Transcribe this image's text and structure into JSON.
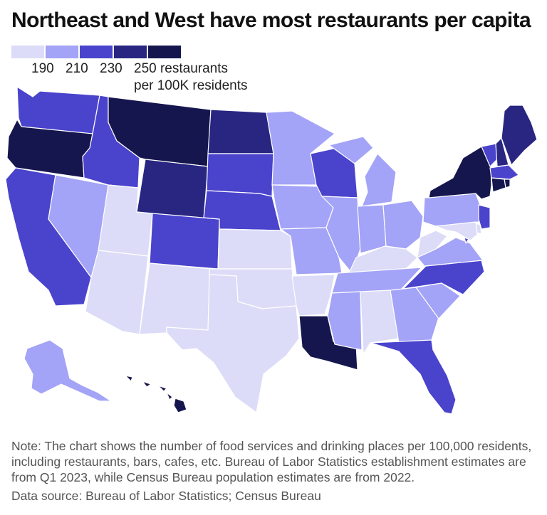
{
  "title": "Northeast and West have most restaurants per capita",
  "legend": {
    "colors": [
      "#dcdcf8",
      "#a3a3f7",
      "#4a43cc",
      "#282681",
      "#16164f"
    ],
    "ticks": [
      "190",
      "210",
      "230",
      "250 restaurants"
    ],
    "unit_line": "per 100K residents"
  },
  "note": "Note: The chart shows the number of food services and drinking places per 100,000 residents, including restaurants, bars, cafes, etc. Bureau of Labor Statistics establishment estimates are from Q1 2023, while Census Bureau population estimates are from 2022.",
  "source": "Data source: Bureau of Labor Statistics; Census Bureau",
  "chart_data": {
    "type": "choropleth",
    "title": "Northeast and West have most restaurants per capita",
    "value_label": "restaurants per 100K residents",
    "bins": [
      190,
      210,
      230,
      250
    ],
    "bin_colors": [
      "#dcdcf8",
      "#a3a3f7",
      "#4a43cc",
      "#282681",
      "#16164f"
    ],
    "states": {
      "WA": 3,
      "OR": 5,
      "CA": 3,
      "NV": 2,
      "ID": 3,
      "MT": 5,
      "WY": 4,
      "UT": 1,
      "AZ": 1,
      "CO": 3,
      "NM": 1,
      "ND": 4,
      "SD": 3,
      "NE": 3,
      "KS": 1,
      "OK": 1,
      "TX": 1,
      "MN": 2,
      "IA": 2,
      "MO": 2,
      "AR": 1,
      "LA": 5,
      "WI": 3,
      "IL": 2,
      "MI": 2,
      "IN": 2,
      "OH": 2,
      "KY": 1,
      "TN": 2,
      "MS": 2,
      "AL": 1,
      "GA": 2,
      "FL": 3,
      "SC": 2,
      "NC": 3,
      "VA": 2,
      "WV": 1,
      "PA": 2,
      "NY": 5,
      "VT": 3,
      "NH": 4,
      "ME": 4,
      "MA": 3,
      "RI": 5,
      "CT": 5,
      "NJ": 3,
      "DE": 1,
      "MD": 1,
      "DC": 3,
      "AK": 2,
      "HI": 5
    }
  }
}
